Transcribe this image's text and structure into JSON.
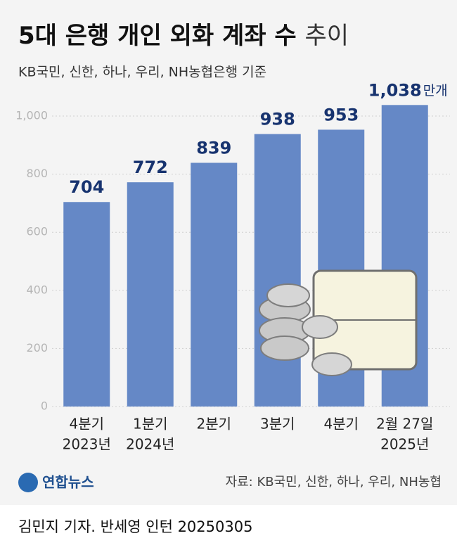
{
  "chart_data": {
    "type": "bar",
    "title": "5대 은행 개인 외화 계좌 수",
    "title_suffix": "추이",
    "subtitle": "KB국민, 신한, 하나, 우리, NH농협은행 기준",
    "categories": [
      [
        "4분기",
        "2023년"
      ],
      [
        "1분기",
        "2024년"
      ],
      [
        "2분기",
        null
      ],
      [
        "3분기",
        null
      ],
      [
        "4분기",
        null
      ],
      [
        "2월 27일",
        "2025년"
      ]
    ],
    "values": [
      704,
      772,
      839,
      938,
      953,
      1038
    ],
    "value_labels": [
      "704",
      "772",
      "839",
      "938",
      "953",
      "1,038"
    ],
    "unit": "만개",
    "color": "#6588c6",
    "ylim": [
      0,
      1000
    ],
    "yticks": [
      0,
      200,
      400,
      600,
      800,
      {
        "value": 1000,
        "label": "1,000"
      }
    ],
    "grid": true,
    "source": "자료: KB국민, 신한, 하나, 우리, NH농협"
  },
  "logo": "연합뉴스",
  "byline": "김민지 기자. 반세영 인턴  20250305"
}
